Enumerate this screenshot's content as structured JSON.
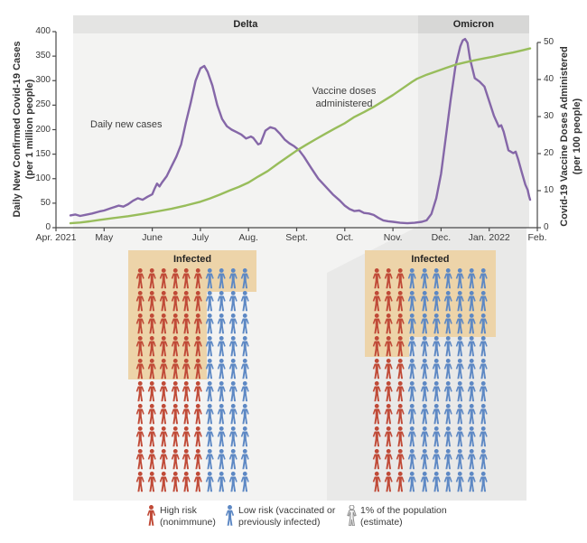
{
  "chart_data": {
    "type": "line",
    "bands": [
      {
        "label": "Delta",
        "x_start": 0.356,
        "x_end": 7.52
      },
      {
        "label": "Omicron",
        "x_start": 7.52,
        "x_end": 9.83
      }
    ],
    "x_axis": {
      "tick_labels": [
        "Apr. 2021",
        "May",
        "June",
        "July",
        "Aug.",
        "Sept.",
        "Oct.",
        "Nov.",
        "Dec.",
        "Jan. 2022",
        "Feb."
      ]
    },
    "y_left_axis": {
      "title_line1": "Daily New Confirmed Covid-19 Cases",
      "title_line2": "(per 1 million people)",
      "ticks": [
        0,
        50,
        100,
        150,
        200,
        250,
        300,
        350,
        400
      ],
      "range": [
        0,
        400
      ]
    },
    "y_right_axis": {
      "title_line1": "Covid-19 Vaccine Doses Administered",
      "title_line2": "(per 100 people)",
      "ticks": [
        0,
        10,
        20,
        30,
        40,
        50
      ],
      "range": [
        0,
        50
      ]
    },
    "series": [
      {
        "name": "Daily new cases",
        "axis": "left",
        "color": "#8567a8",
        "x": [
          0.3,
          0.4,
          0.5,
          0.6,
          0.75,
          0.9,
          1.0,
          1.15,
          1.3,
          1.4,
          1.5,
          1.6,
          1.7,
          1.8,
          1.9,
          2.0,
          2.05,
          2.1,
          2.15,
          2.2,
          2.3,
          2.4,
          2.5,
          2.6,
          2.7,
          2.8,
          2.9,
          3.0,
          3.08,
          3.15,
          3.25,
          3.35,
          3.45,
          3.55,
          3.65,
          3.75,
          3.85,
          3.95,
          4.05,
          4.1,
          4.2,
          4.25,
          4.35,
          4.45,
          4.55,
          4.65,
          4.75,
          4.85,
          4.95,
          5.05,
          5.15,
          5.3,
          5.45,
          5.6,
          5.75,
          5.9,
          6.0,
          6.1,
          6.2,
          6.3,
          6.4,
          6.5,
          6.6,
          6.7,
          6.8,
          6.9,
          7.0,
          7.15,
          7.3,
          7.45,
          7.6,
          7.7,
          7.8,
          7.9,
          8.0,
          8.1,
          8.2,
          8.3,
          8.4,
          8.45,
          8.5,
          8.55,
          8.6,
          8.7,
          8.8,
          8.9,
          9.0,
          9.1,
          9.2,
          9.25,
          9.3,
          9.4,
          9.5,
          9.55,
          9.6,
          9.68,
          9.75,
          9.8,
          9.83,
          9.85
        ],
        "y": [
          25,
          27,
          24,
          26,
          29,
          33,
          35,
          40,
          45,
          43,
          48,
          55,
          60,
          57,
          63,
          68,
          80,
          90,
          84,
          92,
          105,
          125,
          145,
          170,
          215,
          255,
          300,
          325,
          330,
          318,
          290,
          250,
          222,
          207,
          200,
          195,
          190,
          182,
          186,
          183,
          170,
          172,
          198,
          205,
          202,
          192,
          180,
          172,
          166,
          158,
          145,
          122,
          100,
          84,
          68,
          55,
          45,
          38,
          34,
          35,
          30,
          29,
          26,
          20,
          15,
          13,
          12,
          10,
          9,
          10,
          12,
          15,
          28,
          60,
          110,
          185,
          262,
          330,
          370,
          382,
          385,
          377,
          345,
          305,
          298,
          288,
          258,
          228,
          206,
          209,
          196,
          158,
          152,
          155,
          140,
          112,
          88,
          77,
          64,
          57
        ]
      },
      {
        "name": "Vaccine doses administered",
        "axis": "right",
        "color": "#98bd5b",
        "x": [
          0.3,
          0.5,
          0.7,
          0.9,
          1.2,
          1.5,
          1.8,
          2.1,
          2.4,
          2.7,
          3.0,
          3.2,
          3.4,
          3.6,
          3.8,
          4.0,
          4.2,
          4.4,
          4.6,
          4.8,
          5.0,
          5.2,
          5.4,
          5.6,
          5.8,
          6.0,
          6.2,
          6.4,
          6.6,
          6.8,
          7.0,
          7.2,
          7.4,
          7.5,
          7.7,
          7.9,
          8.1,
          8.3,
          8.5,
          8.7,
          8.9,
          9.1,
          9.3,
          9.5,
          9.7,
          9.85
        ],
        "y": [
          1.2,
          1.4,
          1.7,
          2.1,
          2.6,
          3.1,
          3.7,
          4.4,
          5.1,
          6.0,
          7.0,
          7.9,
          8.9,
          10.0,
          11.0,
          12.2,
          13.8,
          15.3,
          17.2,
          19.0,
          20.8,
          22.4,
          23.9,
          25.4,
          26.8,
          28.2,
          29.9,
          31.2,
          32.6,
          34.2,
          35.8,
          37.6,
          39.4,
          40.2,
          41.3,
          42.2,
          43.1,
          44.0,
          44.6,
          45.2,
          45.7,
          46.2,
          46.8,
          47.3,
          47.9,
          48.4
        ]
      }
    ],
    "annotations": [
      {
        "text_line1": "Daily new cases",
        "text_line2": ""
      },
      {
        "text_line1": "Vaccine doses",
        "text_line2": "administered"
      }
    ]
  },
  "pictogram": {
    "panels": [
      {
        "id": "delta",
        "infected_label": "Infected",
        "rows": 10,
        "cols": 10,
        "high_risk_cols": 6,
        "infected_full_rows": 1,
        "infected_high_risk_rows": 5
      },
      {
        "id": "omicron",
        "infected_label": "Infected",
        "rows": 10,
        "cols": 10,
        "high_risk_cols": 3,
        "infected_full_rows": 3,
        "infected_high_risk_rows": 4
      }
    ],
    "colors": {
      "high_risk": "#c04a37",
      "low_risk": "#5d88c4",
      "infected_highlight": "#edd4a9",
      "outline_icon_stroke": "#8f8f8f",
      "outline_icon_fill": "#fafafa"
    }
  },
  "legend": {
    "items": [
      {
        "icon": "person-high-risk",
        "line1": "High risk",
        "line2": "(nonimmune)"
      },
      {
        "icon": "person-low-risk",
        "line1": "Low risk (vaccinated or",
        "line2": "previously infected)"
      },
      {
        "icon": "person-one-percent",
        "line1": "1% of the population",
        "line2": "(estimate)"
      }
    ]
  }
}
